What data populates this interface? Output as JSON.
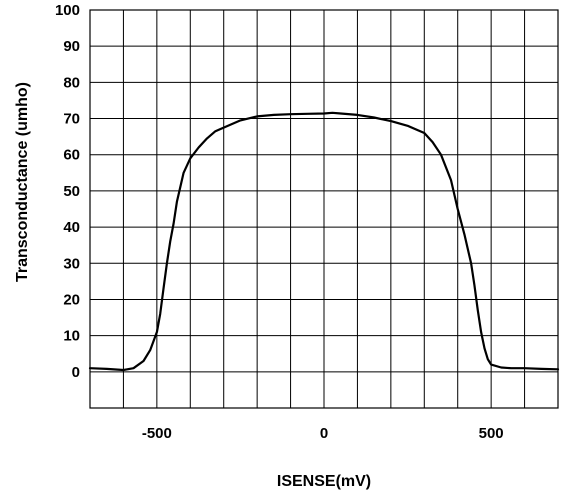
{
  "chart_data": {
    "type": "line",
    "title": "",
    "xlabel": "ISENSE(mV)",
    "ylabel": "Transconductance (umho)",
    "xlim": [
      -700,
      700
    ],
    "ylim": [
      -10,
      100
    ],
    "xticks": [
      -500,
      0,
      500
    ],
    "xtick_labels": [
      "-500",
      "0",
      "500"
    ],
    "yticks": [
      0,
      10,
      20,
      30,
      40,
      50,
      60,
      70,
      80,
      90,
      100
    ],
    "ytick_labels": [
      "0",
      "10",
      "20",
      "30",
      "40",
      "50",
      "60",
      "70",
      "80",
      "90",
      "100"
    ],
    "x_gridlines": [
      -600,
      -500,
      -400,
      -300,
      -200,
      -100,
      0,
      100,
      200,
      300,
      400,
      500,
      600
    ],
    "y_gridlines": [
      0,
      10,
      20,
      30,
      40,
      50,
      60,
      70,
      80,
      90
    ],
    "grid": true,
    "line_color": "#000000",
    "series": [
      {
        "x": [
          -700,
          -650,
          -600,
          -570,
          -540,
          -520,
          -500,
          -490,
          -480,
          -470,
          -460,
          -450,
          -440,
          -420,
          -400,
          -375,
          -350,
          -325,
          -300,
          -250,
          -200,
          -150,
          -100,
          -50,
          0,
          25,
          50,
          100,
          150,
          200,
          250,
          300,
          325,
          350,
          380,
          400,
          420,
          440,
          450,
          460,
          470,
          480,
          490,
          500,
          530,
          560,
          600,
          650,
          700
        ],
        "y": [
          1,
          0.8,
          0.5,
          1,
          3,
          6,
          11,
          16,
          23,
          30,
          36,
          41,
          47,
          55,
          59,
          62,
          64.5,
          66.5,
          67.5,
          69.5,
          70.6,
          71,
          71.2,
          71.3,
          71.4,
          71.6,
          71.4,
          71,
          70.3,
          69.3,
          68,
          66,
          63.5,
          60,
          53,
          45,
          38,
          30,
          24,
          17,
          11,
          6.5,
          3.5,
          2,
          1.2,
          1,
          1,
          0.8,
          0.7
        ]
      }
    ]
  }
}
